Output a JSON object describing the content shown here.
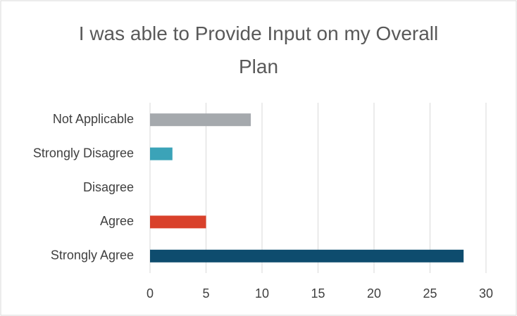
{
  "chart_data": {
    "type": "hbar",
    "title": "I was able to Provide Input on my Overall Plan",
    "categories": [
      "Not Applicable",
      "Strongly Disagree",
      "Disagree",
      "Agree",
      "Strongly Agree"
    ],
    "values": [
      9,
      2,
      0,
      5,
      28
    ],
    "colors": [
      "#a5a9ad",
      "#3ba3b8",
      null,
      "#d9412b",
      "#0e4c6e"
    ],
    "xlim": [
      0,
      30
    ],
    "xticks": [
      0,
      5,
      10,
      15,
      20,
      25,
      30
    ],
    "grid": true
  }
}
